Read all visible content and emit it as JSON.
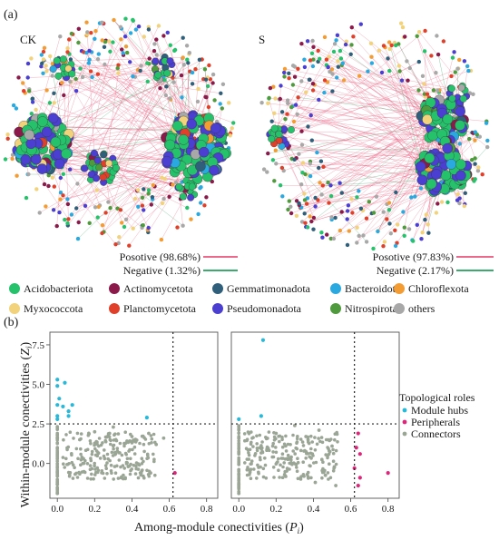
{
  "panel_labels": {
    "a": "(a)",
    "b": "(b)"
  },
  "networks": [
    {
      "label": "CK",
      "positive_text": "Posotive (98.68%)",
      "negative_text": "Negative (1.32%)",
      "positive_share": 98.68,
      "negative_share": 1.32
    },
    {
      "label": "S",
      "positive_text": "Posotive (97.83%)",
      "negative_text": "Negative (2.17%)",
      "positive_share": 97.83,
      "negative_share": 2.17
    }
  ],
  "edge_colors": {
    "positive": "#e8557b",
    "negative": "#1f9e5a"
  },
  "phyla_legend": [
    {
      "name": "Acidobacteriota",
      "color": "#26c26b"
    },
    {
      "name": "Actinomycetota",
      "color": "#8b1a4a"
    },
    {
      "name": "Gemmatimonadota",
      "color": "#2f5f7a"
    },
    {
      "name": "Bacteroidota",
      "color": "#2aa9e0"
    },
    {
      "name": "Chloroflexota",
      "color": "#f39c34"
    },
    {
      "name": "Myxococcota",
      "color": "#f2d27a"
    },
    {
      "name": "Planctomycetota",
      "color": "#e0402a"
    },
    {
      "name": "Pseudomonadota",
      "color": "#4a3fd1"
    },
    {
      "name": "Nitrospirota",
      "color": "#4e9a3c"
    },
    {
      "name": "others",
      "color": "#a8a8a8"
    }
  ],
  "chart_data": {
    "type": "scatter",
    "xlabel": "Among-module conectivities (Pi)",
    "ylabel": "Within-module conectivities (Zi)",
    "xlim": [
      -0.04,
      0.86
    ],
    "ylim": [
      -2.2,
      8.3
    ],
    "x_ticks": [
      "0.0",
      "0.2",
      "0.4",
      "0.6",
      "0.8"
    ],
    "x_tick_values": [
      0.0,
      0.2,
      0.4,
      0.6,
      0.8
    ],
    "y_ticks": [
      "7.5",
      "5.0",
      "2.5",
      "0.0"
    ],
    "y_tick_values": [
      7.5,
      5.0,
      2.5,
      0.0
    ],
    "thresholds": {
      "x": 0.62,
      "y": 2.5
    },
    "legend_title": "Topological roles",
    "series_legend": [
      {
        "name": "Module hubs",
        "color": "#29b8d8"
      },
      {
        "name": "Peripherals",
        "color": "#e0247a"
      },
      {
        "name": "Connectors",
        "color": "#9aa595"
      }
    ],
    "panels": [
      {
        "name": "CK",
        "module_hubs": [
          [
            0.0,
            5.3
          ],
          [
            0.0,
            4.9
          ],
          [
            0.03,
            3.6
          ],
          [
            0.04,
            5.1
          ],
          [
            0.01,
            4.1
          ],
          [
            0.0,
            3.7
          ],
          [
            0.06,
            3.0
          ],
          [
            0.08,
            3.7
          ],
          [
            0.0,
            3.0
          ],
          [
            0.0,
            2.8
          ],
          [
            0.06,
            3.3
          ],
          [
            0.48,
            2.9
          ]
        ],
        "connectors": [
          [
            0.0,
            1.6
          ],
          [
            0.12,
            1.5
          ],
          [
            0.28,
            1.9
          ],
          [
            0.4,
            1.7
          ],
          [
            0.3,
            2.3
          ],
          [
            0.49,
            1.9
          ],
          [
            0.53,
            1.2
          ],
          [
            0.57,
            1.6
          ],
          [
            0.2,
            2.0
          ],
          [
            0.14,
            0.3
          ],
          [
            0.38,
            -0.2
          ],
          [
            0.5,
            -0.6
          ],
          [
            0.0,
            -1.9
          ],
          [
            0.0,
            -1.3
          ],
          [
            0.0,
            -0.8
          ]
        ],
        "peripherals": [
          [
            0.63,
            -0.6
          ]
        ]
      },
      {
        "name": "S",
        "module_hubs": [
          [
            0.13,
            7.8
          ],
          [
            0.12,
            3.0
          ],
          [
            0.0,
            2.8
          ]
        ],
        "connectors": [
          [
            0.0,
            1.6
          ],
          [
            0.2,
            1.9
          ],
          [
            0.3,
            2.4
          ],
          [
            0.43,
            2.1
          ],
          [
            0.36,
            1.7
          ],
          [
            0.5,
            1.1
          ],
          [
            0.41,
            -1.2
          ],
          [
            0.52,
            -1.4
          ],
          [
            0.0,
            -1.9
          ],
          [
            0.0,
            -1.3
          ],
          [
            0.0,
            -0.7
          ]
        ],
        "peripherals": [
          [
            0.64,
            1.9
          ],
          [
            0.63,
            1.0
          ],
          [
            0.65,
            0.6
          ],
          [
            0.62,
            -0.3
          ],
          [
            0.8,
            -0.6
          ],
          [
            0.65,
            -0.9
          ],
          [
            0.64,
            -1.4
          ]
        ]
      }
    ]
  }
}
